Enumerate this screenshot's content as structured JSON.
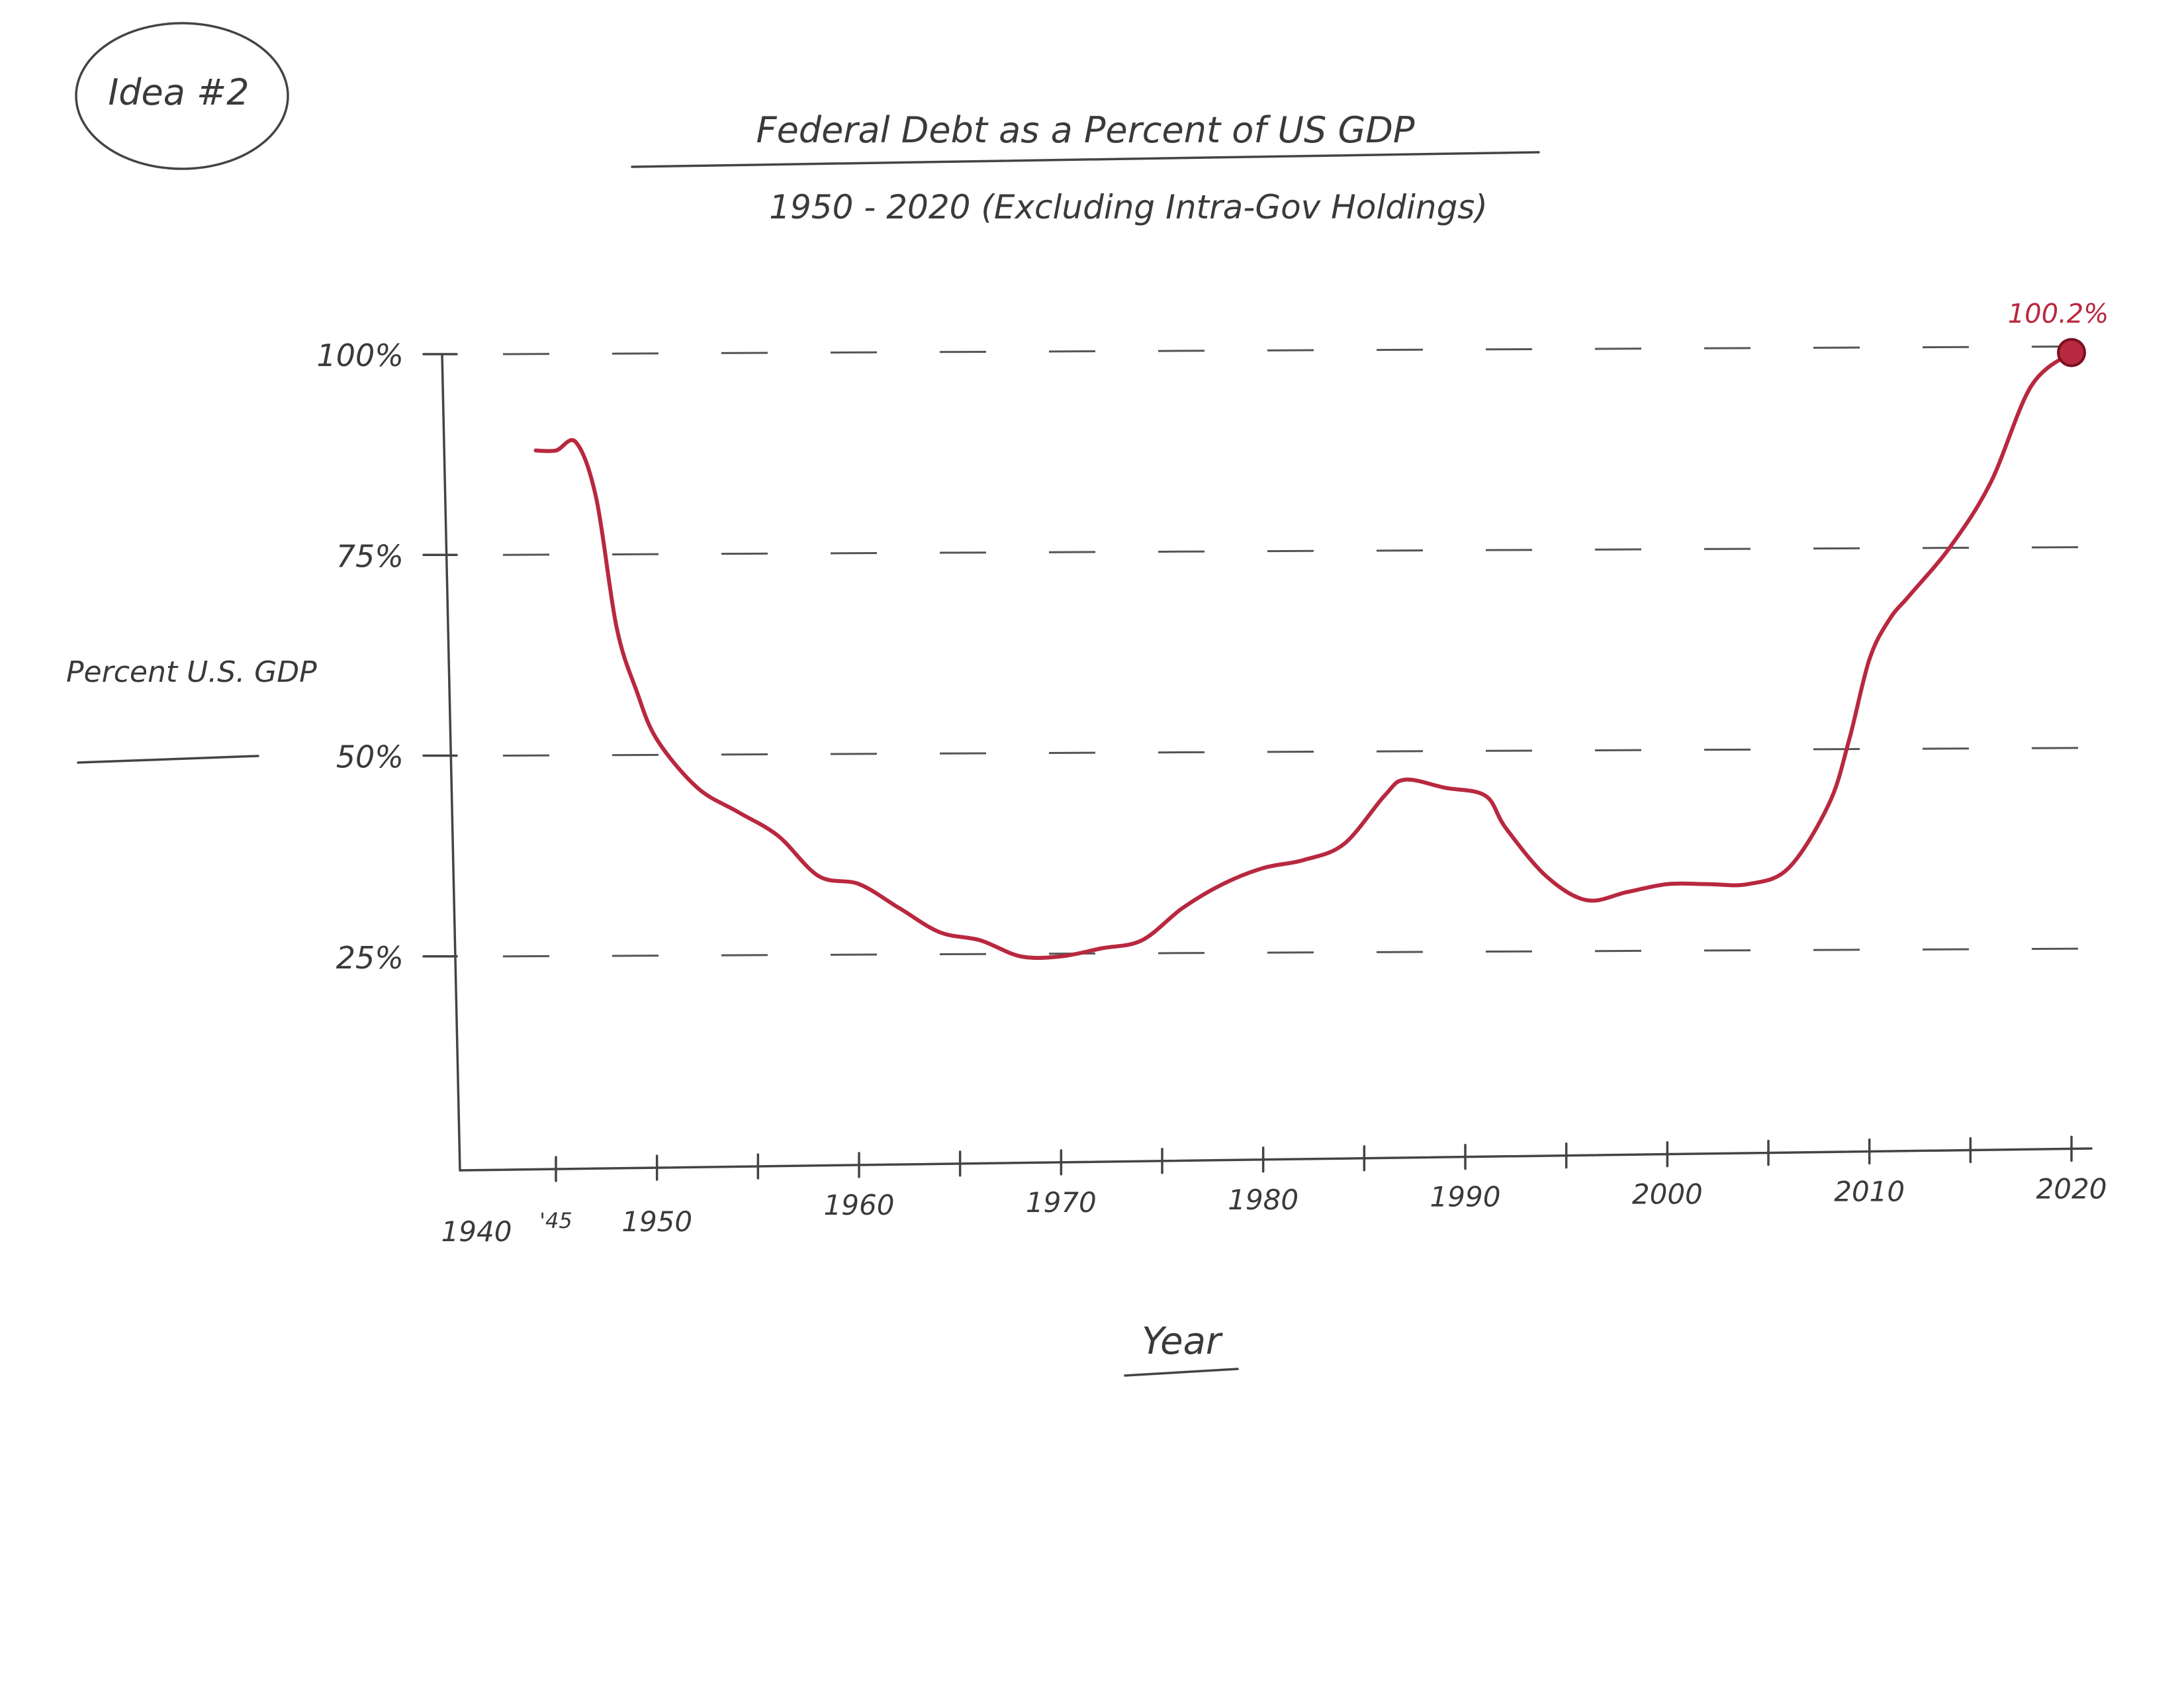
{
  "note_label": "Idea #2",
  "chart_data": {
    "type": "line",
    "title": "Federal Debt as a Percent of US GDP",
    "subtitle": "1950 - 2020 (Excluding Intra-Gov Holdings)",
    "xlabel": "Year",
    "ylabel": "Percent U.S. GDP",
    "xlim": [
      1940,
      2020
    ],
    "ylim": [
      0,
      100
    ],
    "x_ticks": [
      "1940",
      "'45",
      "1950",
      "1960",
      "1970",
      "1980",
      "1990",
      "2000",
      "2010",
      "2020"
    ],
    "y_ticks": [
      "100%",
      "75%",
      "50%",
      "25%"
    ],
    "y_tick_values": [
      100,
      75,
      50,
      25
    ],
    "grid": true,
    "line_color": "#b8283f",
    "series": [
      {
        "x": [
          1944,
          1945,
          1946,
          1947,
          1948,
          1949,
          1950,
          1952,
          1954,
          1956,
          1958,
          1960,
          1962,
          1964,
          1966,
          1968,
          1970,
          1972,
          1974,
          1976,
          1978,
          1980,
          1982,
          1984,
          1986,
          1987,
          1989,
          1991,
          1992,
          1994,
          1996,
          1998,
          2000,
          2002,
          2004,
          2006,
          2008,
          2009,
          2010,
          2011,
          2012,
          2014,
          2016,
          2018,
          2020
        ],
        "y": [
          88,
          88,
          89,
          82,
          66,
          58,
          52,
          46,
          43,
          40,
          35,
          34,
          31,
          28,
          27,
          25,
          25,
          26,
          27,
          31,
          34,
          36,
          37,
          39,
          45,
          47,
          46,
          45,
          41,
          35,
          32,
          33,
          34,
          34,
          34,
          36,
          44,
          52,
          62,
          67,
          70,
          76,
          84,
          96,
          100.2
        ]
      }
    ],
    "annotations": [
      {
        "label": "100.2%",
        "x": 2020,
        "y": 100.2
      }
    ]
  }
}
